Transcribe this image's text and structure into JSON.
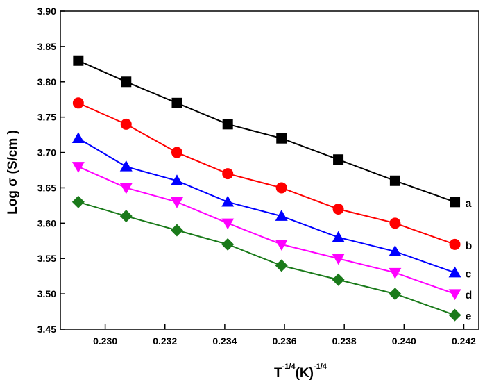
{
  "chart_data": {
    "type": "line",
    "title": "",
    "ylabel": "Log σ (S/cm )",
    "xlabel": {
      "base": "T",
      "base_exp": "-1/4",
      "unit": "(K)",
      "unit_exp": "-1/4"
    },
    "xlim": [
      0.2285,
      0.2425
    ],
    "ylim": [
      3.45,
      3.9
    ],
    "x_ticks": [
      "0.230",
      "0.232",
      "0.234",
      "0.236",
      "0.238",
      "0.240",
      "0.242"
    ],
    "y_ticks": [
      "3.45",
      "3.50",
      "3.55",
      "3.60",
      "3.65",
      "3.70",
      "3.75",
      "3.80",
      "3.85",
      "3.90"
    ],
    "grid": false,
    "x": [
      0.2291,
      0.2307,
      0.2324,
      0.2341,
      0.2359,
      0.2378,
      0.2397,
      0.2417
    ],
    "series": [
      {
        "name": "a",
        "marker": "square",
        "color": "#000000",
        "values": [
          3.83,
          3.8,
          3.77,
          3.74,
          3.72,
          3.69,
          3.66,
          3.63
        ]
      },
      {
        "name": "b",
        "marker": "circle",
        "color": "#ff0000",
        "values": [
          3.77,
          3.74,
          3.7,
          3.67,
          3.65,
          3.62,
          3.6,
          3.57
        ]
      },
      {
        "name": "c",
        "marker": "triangle-up",
        "color": "#0000ff",
        "values": [
          3.72,
          3.68,
          3.66,
          3.63,
          3.61,
          3.58,
          3.56,
          3.53
        ]
      },
      {
        "name": "d",
        "marker": "triangle-down",
        "color": "#ff00ff",
        "values": [
          3.68,
          3.65,
          3.63,
          3.6,
          3.57,
          3.55,
          3.53,
          3.5
        ]
      },
      {
        "name": "e",
        "marker": "diamond",
        "color": "#1a7a1a",
        "values": [
          3.63,
          3.61,
          3.59,
          3.57,
          3.54,
          3.52,
          3.5,
          3.47
        ]
      }
    ]
  }
}
